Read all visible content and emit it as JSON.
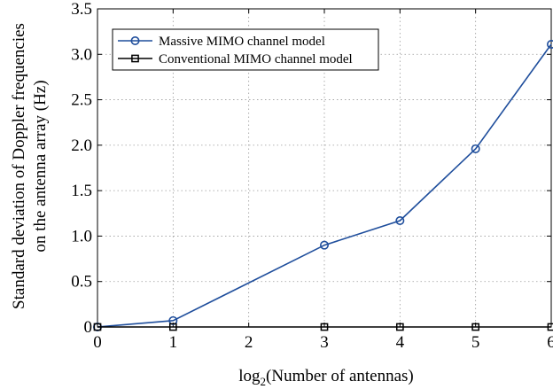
{
  "chart_data": {
    "type": "line",
    "title": "",
    "xlabel_prefix": "log",
    "xlabel_subscript": "2",
    "xlabel_suffix": "(Number of antennas)",
    "ylabel_line1": "Standard deviation of Doppler frequencies",
    "ylabel_line2": "on the antenna array (Hz)",
    "xlim": [
      0,
      6
    ],
    "ylim": [
      0,
      3.5
    ],
    "xticks": [
      0,
      1,
      2,
      3,
      4,
      5,
      6
    ],
    "xtick_labels": [
      "0",
      "1",
      "2",
      "3",
      "4",
      "5",
      "6"
    ],
    "yticks": [
      0,
      0.5,
      1.0,
      1.5,
      2.0,
      2.5,
      3.0,
      3.5
    ],
    "ytick_labels": [
      "0",
      "0.5",
      "1.0",
      "1.5",
      "2.0",
      "2.5",
      "3.0",
      "3.5"
    ],
    "grid": true,
    "legend_position": "top-left",
    "series": [
      {
        "name": "Massive MIMO channel model",
        "marker": "circle",
        "color": "#1f4e9c",
        "x": [
          0,
          1,
          3,
          4,
          5,
          6
        ],
        "y": [
          0,
          0.07,
          0.9,
          1.17,
          1.96,
          3.11
        ]
      },
      {
        "name": "Conventional MIMO channel model",
        "marker": "square",
        "color": "#000000",
        "x": [
          0,
          1,
          3,
          4,
          5,
          6
        ],
        "y": [
          0,
          0,
          0,
          0,
          0,
          0
        ]
      }
    ]
  }
}
